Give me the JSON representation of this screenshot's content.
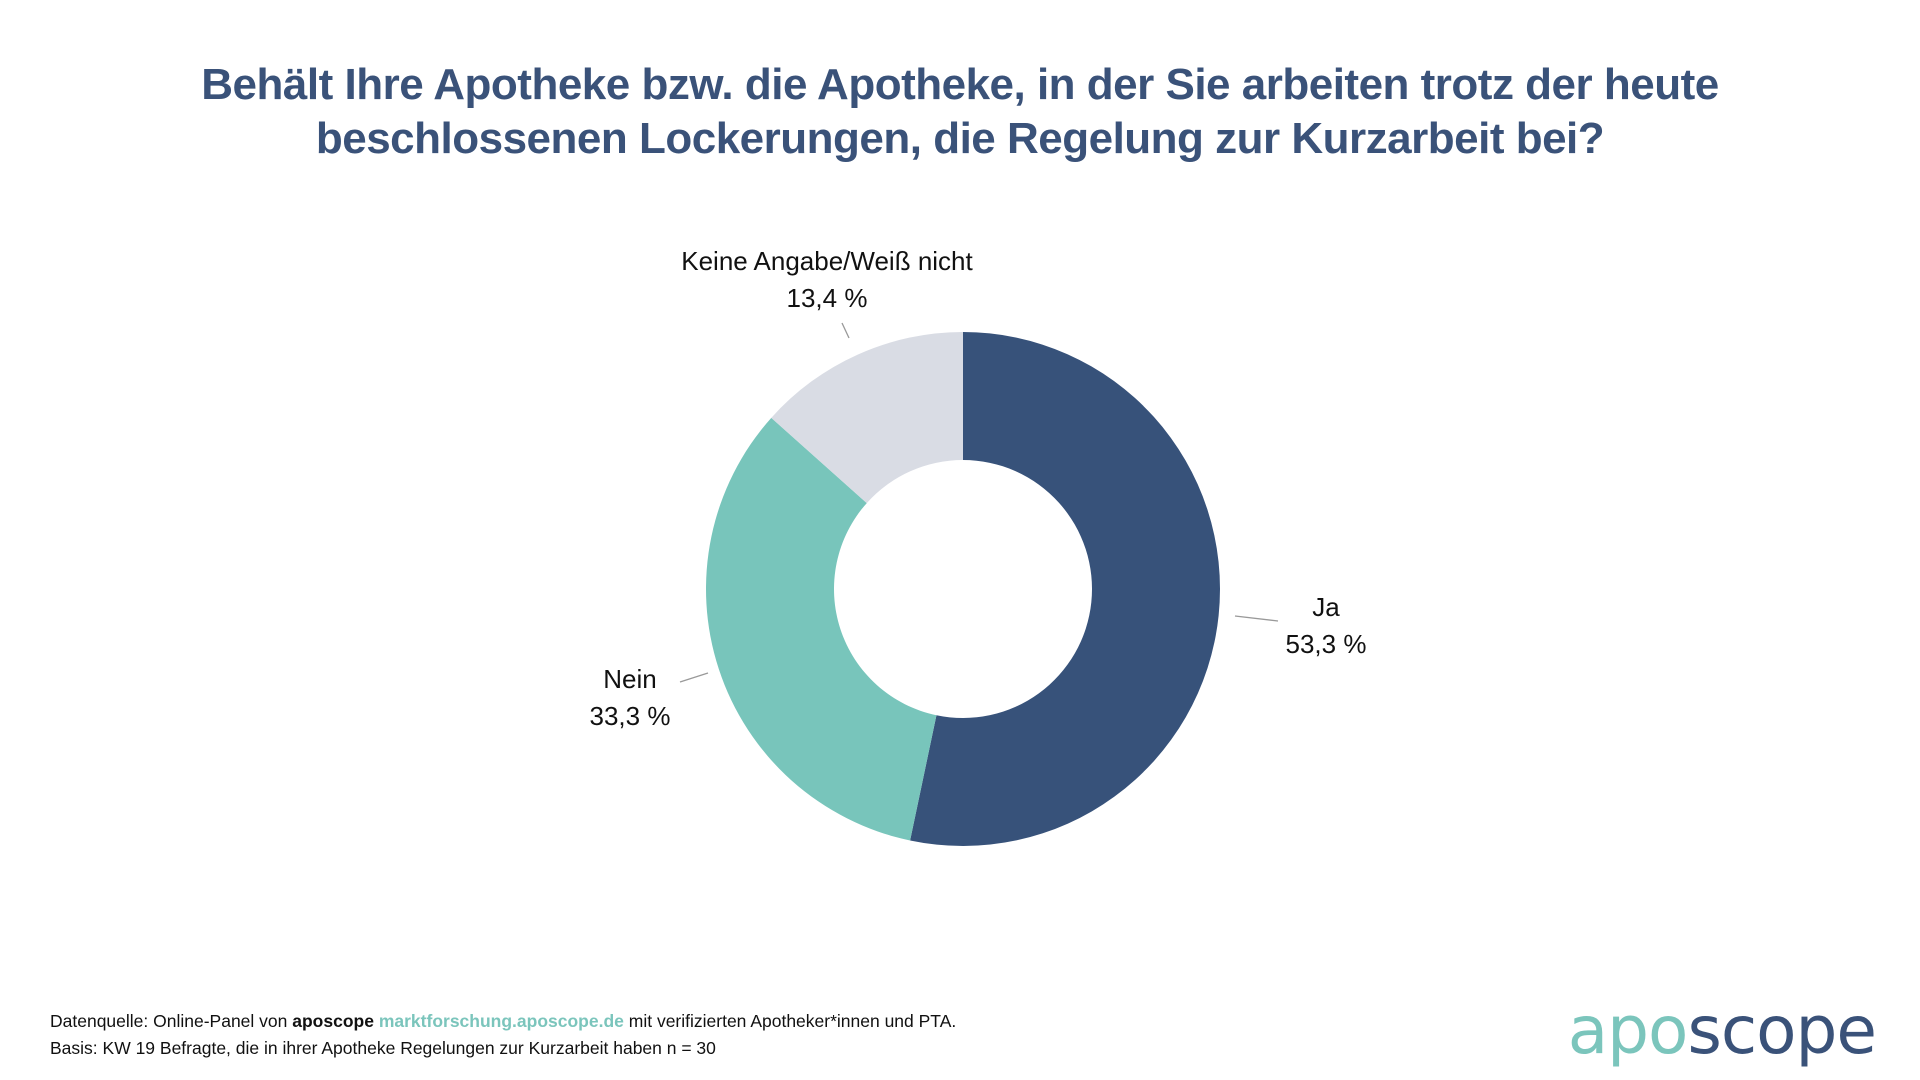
{
  "title": {
    "line1": "Behält Ihre Apotheke bzw. die Apotheke, in der Sie arbeiten trotz der heute",
    "line2": "beschlossenen Lockerungen, die Regelung zur Kurzarbeit bei?"
  },
  "chart_data": {
    "type": "pie",
    "variant": "donut",
    "title": "Behält Ihre Apotheke bzw. die Apotheke, in der Sie arbeiten trotz der heute beschlossenen Lockerungen, die Regelung zur Kurzarbeit bei?",
    "slices": [
      {
        "label": "Ja",
        "value": 53.3,
        "display": "53,3 %",
        "color": "#37527a"
      },
      {
        "label": "Nein",
        "value": 33.3,
        "display": "33,3 %",
        "color": "#78c5bb"
      },
      {
        "label": "Keine Angabe/Weiß nicht",
        "value": 13.4,
        "display": "13,4 %",
        "color": "#d9dce4"
      }
    ],
    "start_angle": "12 o'clock",
    "direction": "clockwise",
    "legend": "none (data labels with leader lines)"
  },
  "footer": {
    "source_prefix": "Datenquelle: Online-Panel von ",
    "source_brand": "aposcope",
    "source_link": "marktforschung.aposcope.de",
    "source_suffix": " mit verifizierten Apotheker*innen und PTA.",
    "basis": "Basis: KW 19 Befragte, die in ihrer Apotheke Regelungen zur Kurzarbeit haben n = 30"
  },
  "logo": {
    "part1": "apo",
    "part2": "scope"
  }
}
